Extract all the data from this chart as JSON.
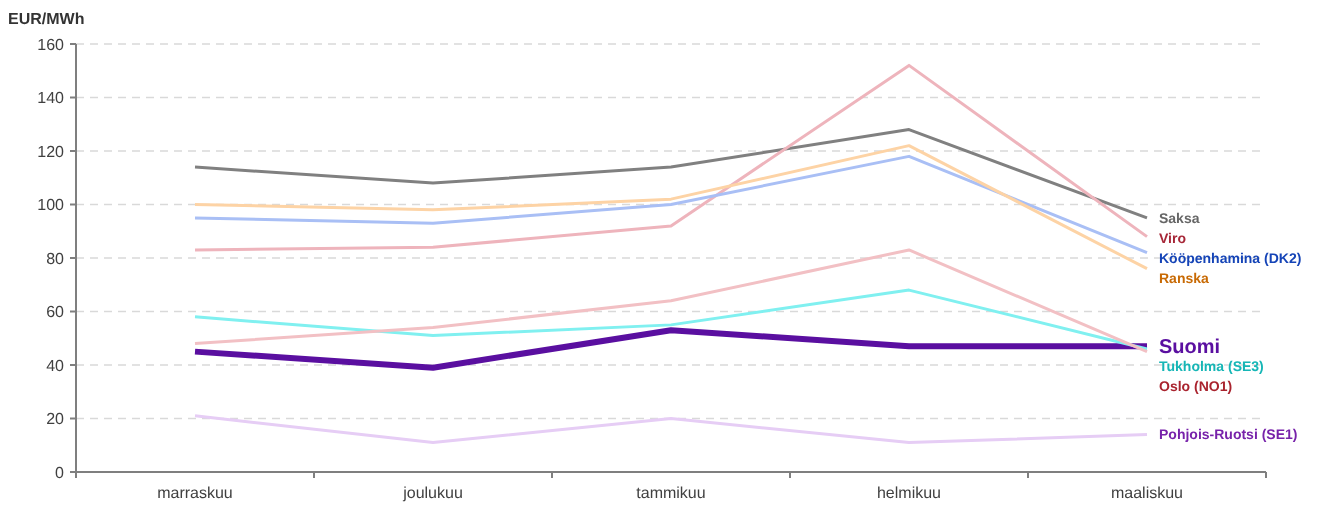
{
  "chart_data": {
    "type": "line",
    "ylabel": "EUR/MWh",
    "categories": [
      "marraskuu",
      "joulukuu",
      "tammikuu",
      "helmikuu",
      "maaliskuu"
    ],
    "ylim": [
      0,
      160
    ],
    "yticks": [
      0,
      20,
      40,
      60,
      80,
      100,
      120,
      140,
      160
    ],
    "grid": "y",
    "series": [
      {
        "name": "Saksa",
        "color": "#808080",
        "values": [
          114,
          108,
          114,
          128,
          95
        ]
      },
      {
        "name": "Viro",
        "color": "#eeb4bc",
        "values": [
          83,
          84,
          92,
          152,
          88
        ]
      },
      {
        "name": "Kööpenhamina (DK2)",
        "color": "#a9bff5",
        "values": [
          95,
          93,
          100,
          118,
          82
        ]
      },
      {
        "name": "Ranska",
        "color": "#fdd3a5",
        "values": [
          100,
          98,
          102,
          122,
          76
        ]
      },
      {
        "name": "Suomi",
        "color": "#5a0fa0",
        "values": [
          45,
          39,
          53,
          47,
          47
        ]
      },
      {
        "name": "Tukholma (SE3)",
        "color": "#80f0f0",
        "values": [
          58,
          51,
          55,
          68,
          46
        ]
      },
      {
        "name": "Oslo (NO1)",
        "color": "#f2c0c4",
        "values": [
          48,
          54,
          64,
          83,
          45
        ]
      },
      {
        "name": "Pohjois-Ruotsi (SE1)",
        "color": "#e6cdf5",
        "values": [
          21,
          11,
          20,
          11,
          14
        ]
      }
    ]
  }
}
